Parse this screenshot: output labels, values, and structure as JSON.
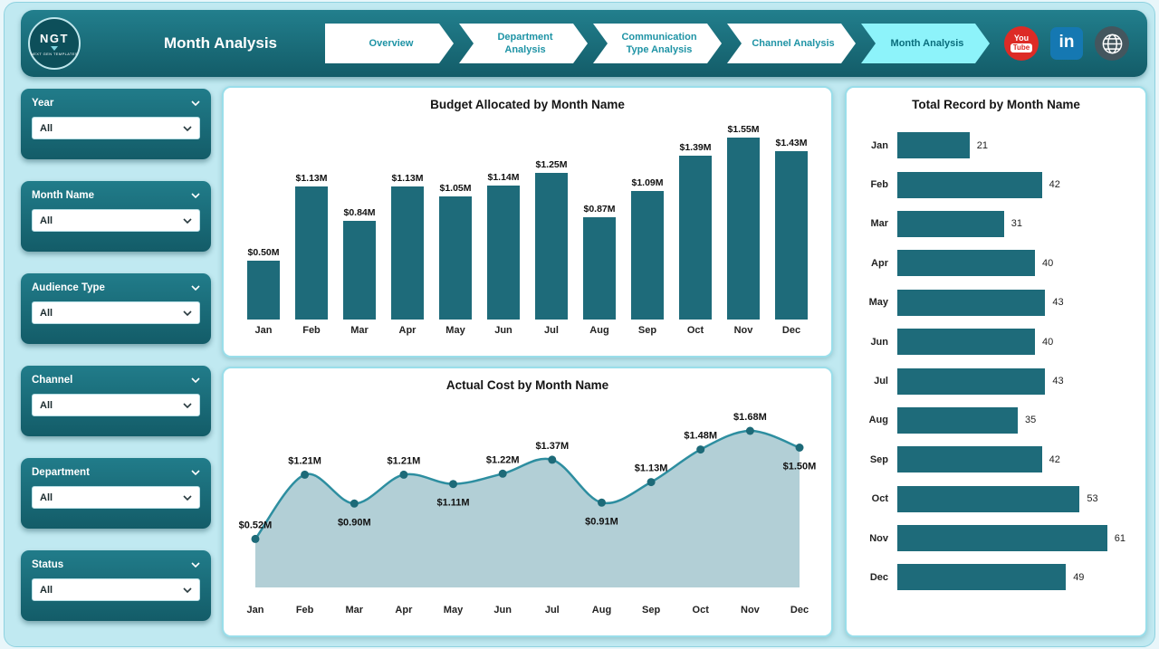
{
  "colors": {
    "teal": "#1e6b7a",
    "active_tab": "#8df3fa",
    "area_fill": "#b2cfd6",
    "area_line": "#2d8ea0",
    "marker": "#1d6a78",
    "youtube_red": "#dd2b26",
    "linkedin_blue": "#1578b2",
    "page_bg": "#c0e9f1"
  },
  "header": {
    "title": "Month Analysis",
    "logo": {
      "text": "NGT",
      "subtext": "NEXT GEN TEMPLATES"
    },
    "nav": [
      {
        "label": "Overview",
        "active": false
      },
      {
        "label": "Department Analysis",
        "active": false
      },
      {
        "label": "Communication Type Analysis",
        "active": false
      },
      {
        "label": "Channel Analysis",
        "active": false
      },
      {
        "label": "Month Analysis",
        "active": true
      }
    ],
    "social": {
      "youtube_line1": "You",
      "youtube_line2": "Tube",
      "linkedin_label": "in"
    }
  },
  "filters": [
    {
      "label": "Year",
      "value": "All"
    },
    {
      "label": "Month Name",
      "value": "All"
    },
    {
      "label": "Audience Type",
      "value": "All"
    },
    {
      "label": "Channel",
      "value": "All"
    },
    {
      "label": "Department",
      "value": "All"
    },
    {
      "label": "Status",
      "value": "All"
    }
  ],
  "chart_data": [
    {
      "type": "bar",
      "title": "Budget Allocated by Month Name",
      "categories": [
        "Jan",
        "Feb",
        "Mar",
        "Apr",
        "May",
        "Jun",
        "Jul",
        "Aug",
        "Sep",
        "Oct",
        "Nov",
        "Dec"
      ],
      "values": [
        0.5,
        1.13,
        0.84,
        1.13,
        1.05,
        1.14,
        1.25,
        0.87,
        1.09,
        1.39,
        1.55,
        1.43
      ],
      "labels": [
        "$0.50M",
        "$1.13M",
        "$0.84M",
        "$1.13M",
        "$1.05M",
        "$1.14M",
        "$1.25M",
        "$0.87M",
        "$1.09M",
        "$1.39M",
        "$1.55M",
        "$1.43M"
      ],
      "xlabel": "",
      "ylabel": "",
      "ylim": [
        0,
        1.7
      ],
      "grid": false,
      "legend": "none"
    },
    {
      "type": "area",
      "title": "Actual Cost by Month Name",
      "categories": [
        "Jan",
        "Feb",
        "Mar",
        "Apr",
        "May",
        "Jun",
        "Jul",
        "Aug",
        "Sep",
        "Oct",
        "Nov",
        "Dec"
      ],
      "values": [
        0.52,
        1.21,
        0.9,
        1.21,
        1.11,
        1.22,
        1.37,
        0.91,
        1.13,
        1.48,
        1.68,
        1.5
      ],
      "labels": [
        "$0.52M",
        "$1.21M",
        "$0.90M",
        "$1.21M",
        "$1.11M",
        "$1.22M",
        "$1.37M",
        "$0.91M",
        "$1.13M",
        "$1.48M",
        "$1.68M",
        "$1.50M"
      ],
      "xlabel": "",
      "ylabel": "",
      "ylim": [
        0,
        1.9
      ],
      "grid": false,
      "legend": "none"
    },
    {
      "type": "bar",
      "orientation": "horizontal",
      "title": "Total Record by Month Name",
      "categories": [
        "Jan",
        "Feb",
        "Mar",
        "Apr",
        "May",
        "Jun",
        "Jul",
        "Aug",
        "Sep",
        "Oct",
        "Nov",
        "Dec"
      ],
      "values": [
        21,
        42,
        31,
        40,
        43,
        40,
        43,
        35,
        42,
        53,
        61,
        49
      ],
      "xlabel": "",
      "ylabel": "",
      "xlim": [
        0,
        65
      ],
      "grid": false,
      "legend": "none"
    }
  ]
}
